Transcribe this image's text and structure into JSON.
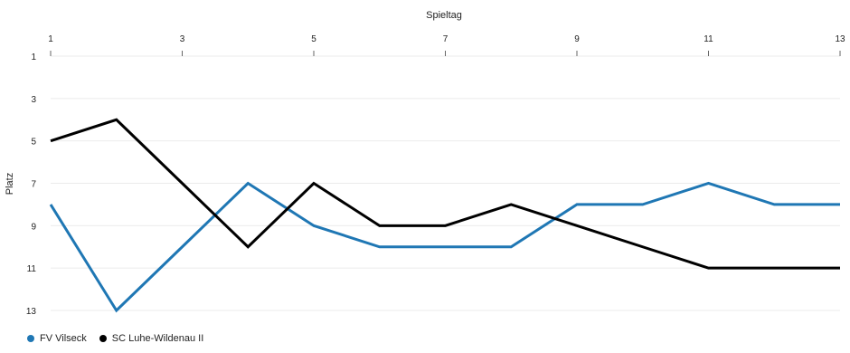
{
  "chart_data": {
    "type": "line",
    "xlabel": "Spieltag",
    "ylabel": "Platz",
    "x": [
      1,
      2,
      3,
      4,
      5,
      6,
      7,
      8,
      9,
      10,
      11,
      12,
      13
    ],
    "x_ticks": [
      1,
      3,
      5,
      7,
      9,
      11,
      13
    ],
    "y_ticks": [
      1,
      3,
      5,
      7,
      9,
      11,
      13
    ],
    "xlim": [
      1,
      13
    ],
    "ylim": [
      1,
      13
    ],
    "y_inverted": true,
    "x_axis_position": "top",
    "grid": "horizontal",
    "legend_position": "bottom-left",
    "series": [
      {
        "name": "FV Vilseck",
        "color": "#1f77b4",
        "values": [
          8,
          13,
          10,
          7,
          9,
          10,
          10,
          10,
          8,
          8,
          7,
          8,
          8
        ]
      },
      {
        "name": "SC Luhe-Wildenau II",
        "color": "#000000",
        "values": [
          5,
          4,
          7,
          10,
          7,
          9,
          9,
          8,
          9,
          10,
          11,
          11,
          11
        ]
      }
    ]
  }
}
